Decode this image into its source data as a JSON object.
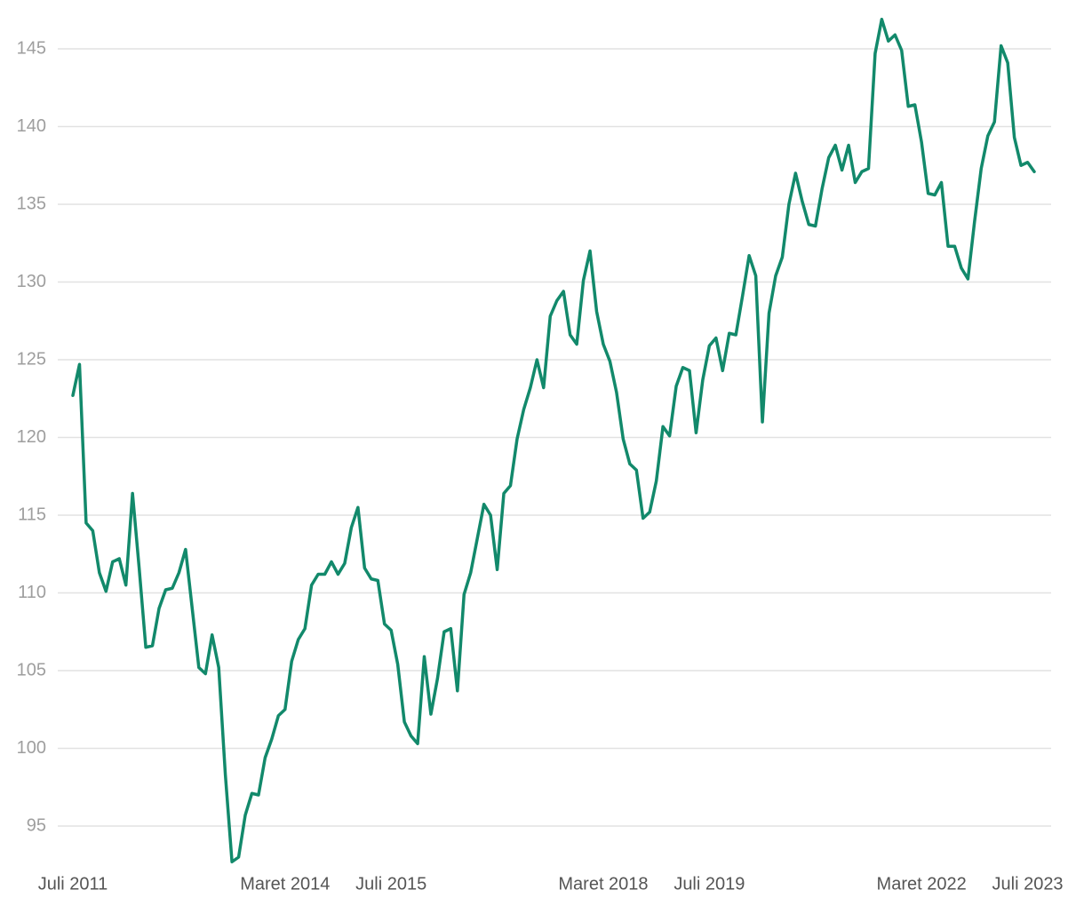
{
  "chart_data": {
    "type": "line",
    "categories": [
      "Juli 2011",
      null,
      null,
      null,
      null,
      null,
      null,
      null,
      null,
      null,
      null,
      null,
      null,
      null,
      null,
      null,
      null,
      null,
      null,
      null,
      null,
      null,
      null,
      null,
      null,
      null,
      null,
      null,
      null,
      null,
      null,
      null,
      "Maret 2014",
      null,
      null,
      null,
      null,
      null,
      null,
      null,
      null,
      null,
      null,
      null,
      null,
      null,
      null,
      null,
      "Juli 2015",
      null,
      null,
      null,
      null,
      null,
      null,
      null,
      null,
      null,
      null,
      null,
      null,
      null,
      null,
      null,
      null,
      null,
      null,
      null,
      null,
      null,
      null,
      null,
      null,
      null,
      null,
      null,
      null,
      null,
      null,
      null,
      "Maret 2018",
      null,
      null,
      null,
      null,
      null,
      null,
      null,
      null,
      null,
      null,
      null,
      null,
      null,
      null,
      null,
      "Juli 2019",
      null,
      null,
      null,
      null,
      null,
      null,
      null,
      null,
      null,
      null,
      null,
      null,
      null,
      null,
      null,
      null,
      null,
      null,
      null,
      null,
      null,
      null,
      null,
      null,
      null,
      null,
      null,
      null,
      null,
      null,
      null,
      "Maret 2022",
      null,
      null,
      null,
      null,
      null,
      null,
      null,
      null,
      null,
      null,
      null,
      null,
      null,
      null,
      null,
      "Juli 2023",
      null
    ],
    "series": [
      {
        "color": "#12896b",
        "values": [
          122.7,
          124.7,
          114.5,
          114.0,
          111.3,
          110.1,
          112.0,
          112.2,
          110.5,
          116.4,
          111.6,
          106.5,
          106.6,
          109.0,
          110.2,
          110.3,
          111.3,
          112.8,
          109.0,
          105.2,
          104.8,
          107.3,
          105.2,
          98.3,
          92.7,
          93.0,
          95.7,
          97.1,
          97.0,
          99.4,
          100.6,
          102.1,
          102.5,
          105.6,
          107.0,
          107.7,
          110.5,
          111.2,
          111.2,
          112.0,
          111.2,
          111.9,
          114.2,
          115.5,
          111.6,
          110.9,
          110.8,
          108.0,
          107.6,
          105.4,
          101.7,
          100.8,
          100.3,
          105.9,
          102.2,
          104.5,
          107.5,
          107.7,
          103.7,
          109.9,
          111.3,
          113.5,
          115.7,
          115.0,
          111.5,
          116.4,
          116.9,
          119.9,
          121.8,
          123.2,
          125.0,
          123.2,
          127.8,
          128.8,
          129.4,
          126.6,
          126.0,
          130.1,
          132.0,
          128.1,
          126.0,
          124.9,
          122.9,
          119.9,
          118.3,
          117.9,
          114.8,
          115.2,
          117.2,
          120.7,
          120.1,
          123.3,
          124.5,
          124.3,
          120.3,
          123.7,
          125.9,
          126.4,
          124.3,
          126.7,
          126.6,
          129.1,
          131.7,
          130.4,
          121.0,
          128.0,
          130.4,
          131.6,
          135.0,
          137.0,
          135.2,
          133.7,
          133.6,
          136.0,
          138.0,
          138.8,
          137.2,
          138.8,
          136.4,
          137.1,
          137.3,
          144.7,
          146.9,
          145.5,
          145.9,
          144.9,
          141.3,
          141.4,
          139.0,
          135.7,
          135.6,
          136.4,
          132.3,
          132.3,
          130.9,
          130.2,
          133.9,
          137.3,
          139.4,
          140.3,
          145.2,
          144.1,
          139.3,
          137.5,
          137.7,
          137.1
        ]
      }
    ],
    "ylim": [
      92.5,
      147
    ],
    "yticks": [
      95,
      100,
      105,
      110,
      115,
      120,
      125,
      130,
      135,
      140,
      145
    ],
    "grid": true
  }
}
